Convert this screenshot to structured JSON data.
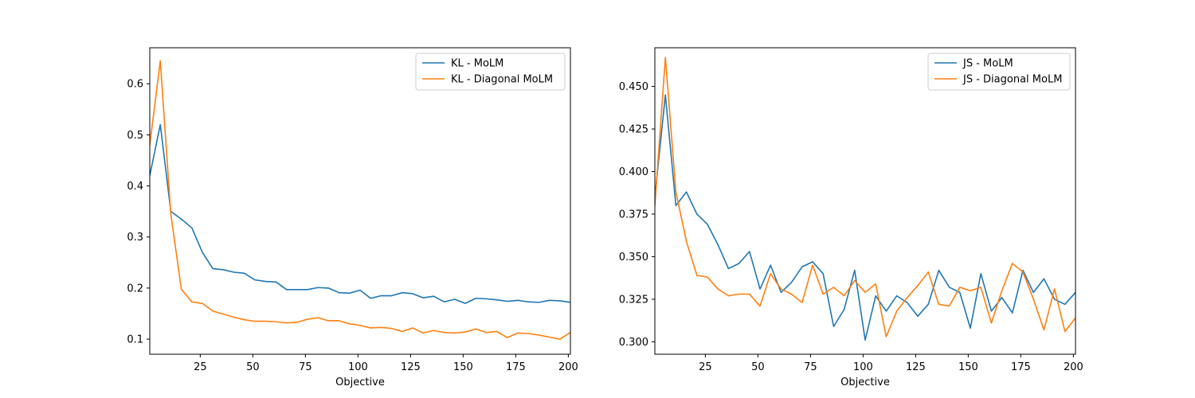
{
  "chart_data": [
    {
      "type": "line",
      "xlabel": "Objective",
      "ylabel": "",
      "xlim": [
        1,
        201
      ],
      "ylim": [
        0.0705,
        0.6705
      ],
      "xticks": [
        25,
        50,
        75,
        100,
        125,
        150,
        175,
        200
      ],
      "yticks": [
        0.1,
        0.2,
        0.3,
        0.4,
        0.5,
        0.6
      ],
      "ytick_labels": [
        "0.1",
        "0.2",
        "0.3",
        "0.4",
        "0.5",
        "0.6"
      ],
      "legend_position": "top-right",
      "x": [
        1,
        6,
        11,
        16,
        21,
        26,
        31,
        36,
        41,
        46,
        51,
        56,
        61,
        66,
        71,
        76,
        81,
        86,
        91,
        96,
        101,
        106,
        111,
        116,
        121,
        126,
        131,
        136,
        141,
        146,
        151,
        156,
        161,
        166,
        171,
        176,
        181,
        186,
        191,
        196,
        201
      ],
      "series": [
        {
          "name": "KL - MoLM",
          "color": "#1f77b4",
          "values": [
            0.42,
            0.52,
            0.35,
            0.335,
            0.318,
            0.27,
            0.238,
            0.236,
            0.231,
            0.229,
            0.216,
            0.213,
            0.212,
            0.197,
            0.197,
            0.197,
            0.201,
            0.2,
            0.191,
            0.19,
            0.196,
            0.18,
            0.185,
            0.185,
            0.191,
            0.189,
            0.181,
            0.184,
            0.173,
            0.178,
            0.17,
            0.18,
            0.179,
            0.177,
            0.174,
            0.176,
            0.173,
            0.172,
            0.176,
            0.175,
            0.172
          ]
        },
        {
          "name": "KL - Diagonal MoLM",
          "color": "#ff7f0e",
          "values": [
            0.48,
            0.645,
            0.345,
            0.198,
            0.173,
            0.17,
            0.155,
            0.149,
            0.143,
            0.138,
            0.135,
            0.135,
            0.134,
            0.132,
            0.133,
            0.139,
            0.142,
            0.136,
            0.136,
            0.13,
            0.127,
            0.122,
            0.123,
            0.121,
            0.115,
            0.122,
            0.112,
            0.117,
            0.113,
            0.112,
            0.114,
            0.12,
            0.113,
            0.115,
            0.103,
            0.112,
            0.111,
            0.108,
            0.104,
            0.1,
            0.113
          ]
        }
      ]
    },
    {
      "type": "line",
      "xlabel": "Objective",
      "ylabel": "",
      "xlim": [
        1,
        201
      ],
      "ylim": [
        0.2927,
        0.4727
      ],
      "xticks": [
        25,
        50,
        75,
        100,
        125,
        150,
        175,
        200
      ],
      "yticks": [
        0.3,
        0.325,
        0.35,
        0.375,
        0.4,
        0.425,
        0.45
      ],
      "ytick_labels": [
        "0.300",
        "0.325",
        "0.350",
        "0.375",
        "0.400",
        "0.425",
        "0.450"
      ],
      "legend_position": "top-right",
      "x": [
        1,
        6,
        11,
        16,
        21,
        26,
        31,
        36,
        41,
        46,
        51,
        56,
        61,
        66,
        71,
        76,
        81,
        86,
        91,
        96,
        101,
        106,
        111,
        116,
        121,
        126,
        131,
        136,
        141,
        146,
        151,
        156,
        161,
        166,
        171,
        176,
        181,
        186,
        191,
        196,
        201
      ],
      "series": [
        {
          "name": "JS - MoLM",
          "color": "#1f77b4",
          "values": [
            0.385,
            0.445,
            0.38,
            0.388,
            0.375,
            0.369,
            0.357,
            0.343,
            0.346,
            0.353,
            0.331,
            0.345,
            0.329,
            0.335,
            0.344,
            0.347,
            0.34,
            0.309,
            0.319,
            0.342,
            0.301,
            0.327,
            0.318,
            0.327,
            0.323,
            0.315,
            0.322,
            0.342,
            0.332,
            0.329,
            0.308,
            0.34,
            0.318,
            0.326,
            0.317,
            0.342,
            0.329,
            0.337,
            0.325,
            0.322,
            0.329
          ]
        },
        {
          "name": "JS - Diagonal MoLM",
          "color": "#ff7f0e",
          "values": [
            0.38,
            0.467,
            0.388,
            0.359,
            0.339,
            0.338,
            0.331,
            0.327,
            0.328,
            0.328,
            0.321,
            0.34,
            0.331,
            0.328,
            0.323,
            0.345,
            0.328,
            0.332,
            0.327,
            0.336,
            0.329,
            0.334,
            0.303,
            0.318,
            0.326,
            0.333,
            0.341,
            0.322,
            0.321,
            0.332,
            0.33,
            0.332,
            0.311,
            0.33,
            0.346,
            0.341,
            0.325,
            0.307,
            0.331,
            0.306,
            0.314
          ]
        }
      ]
    }
  ]
}
